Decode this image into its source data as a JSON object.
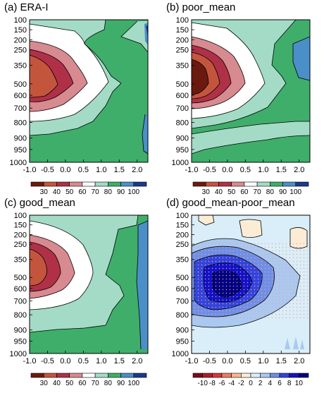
{
  "panels": [
    {
      "title": "(a) ERA-I"
    },
    {
      "title": "(b) poor_mean"
    },
    {
      "title": "(c) good_mean"
    },
    {
      "title": "(d) good_mean-poor_mean"
    }
  ],
  "colorbars": {
    "humidity": {
      "labels": [
        "30",
        "40",
        "50",
        "60",
        "70",
        "80",
        "90",
        "100"
      ],
      "colors": [
        "#6b1a0f",
        "#c4553d",
        "#b03048",
        "#d78a8f",
        "#ffffff",
        "#a3dbc6",
        "#3fae6a",
        "#4b8fc9",
        "#1a3a8a"
      ]
    },
    "difference": {
      "labels": [
        "-10",
        "-8",
        "-6",
        "-4",
        "-2",
        "0",
        "2",
        "4",
        "6",
        "8",
        "10"
      ],
      "colors": [
        "#7a0a1c",
        "#b01c28",
        "#d6363b",
        "#e97d5e",
        "#f5b98a",
        "#fcecd6",
        "#d9eef9",
        "#a9c9f0",
        "#6f8fe6",
        "#3344dd",
        "#1212c8",
        "#000080"
      ]
    }
  },
  "chart_data": [
    {
      "type": "heatmap",
      "title": "(a) ERA-I",
      "x_ticks": [
        "-1.0",
        "-0.5",
        "0.0",
        "0.5",
        "1.0",
        "1.5",
        "2.0"
      ],
      "y_ticks": [
        "100",
        "150",
        "200",
        "250",
        "350",
        "500",
        "600",
        "700",
        "800",
        "900",
        "950",
        "1000"
      ],
      "xlim": [
        -1.0,
        2.3
      ],
      "ylim": [
        1000,
        100
      ],
      "contour_levels": [
        30,
        40,
        50,
        60,
        70,
        80,
        90,
        100
      ]
    },
    {
      "type": "heatmap",
      "title": "(b) poor_mean",
      "x_ticks": [
        "-1.0",
        "-0.5",
        "0.0",
        "0.5",
        "1.0",
        "1.5",
        "2.0"
      ],
      "y_ticks": [
        "100",
        "150",
        "200",
        "250",
        "350",
        "500",
        "600",
        "700",
        "800",
        "900",
        "950",
        "1000"
      ],
      "xlim": [
        -1.0,
        2.3
      ],
      "ylim": [
        1000,
        100
      ],
      "contour_levels": [
        30,
        40,
        50,
        60,
        70,
        80,
        90,
        100
      ]
    },
    {
      "type": "heatmap",
      "title": "(c) good_mean",
      "x_ticks": [
        "-1.0",
        "-0.5",
        "0.0",
        "0.5",
        "1.0",
        "1.5",
        "2.0"
      ],
      "y_ticks": [
        "100",
        "150",
        "200",
        "250",
        "350",
        "500",
        "600",
        "700",
        "800",
        "900",
        "950",
        "1000"
      ],
      "xlim": [
        -1.0,
        2.3
      ],
      "ylim": [
        1000,
        100
      ],
      "contour_levels": [
        30,
        40,
        50,
        60,
        70,
        80,
        90,
        100
      ]
    },
    {
      "type": "heatmap",
      "title": "(d) good_mean-poor_mean",
      "x_ticks": [
        "-1.0",
        "-0.5",
        "0.0",
        "0.5",
        "1.0",
        "1.5",
        "2.0"
      ],
      "y_ticks": [
        "100",
        "150",
        "200",
        "250",
        "350",
        "500",
        "600",
        "700",
        "800",
        "900",
        "950",
        "1000"
      ],
      "xlim": [
        -1.0,
        2.3
      ],
      "ylim": [
        1000,
        100
      ],
      "contour_levels": [
        -10,
        -8,
        -6,
        -4,
        -2,
        0,
        2,
        4,
        6,
        8,
        10
      ]
    }
  ]
}
